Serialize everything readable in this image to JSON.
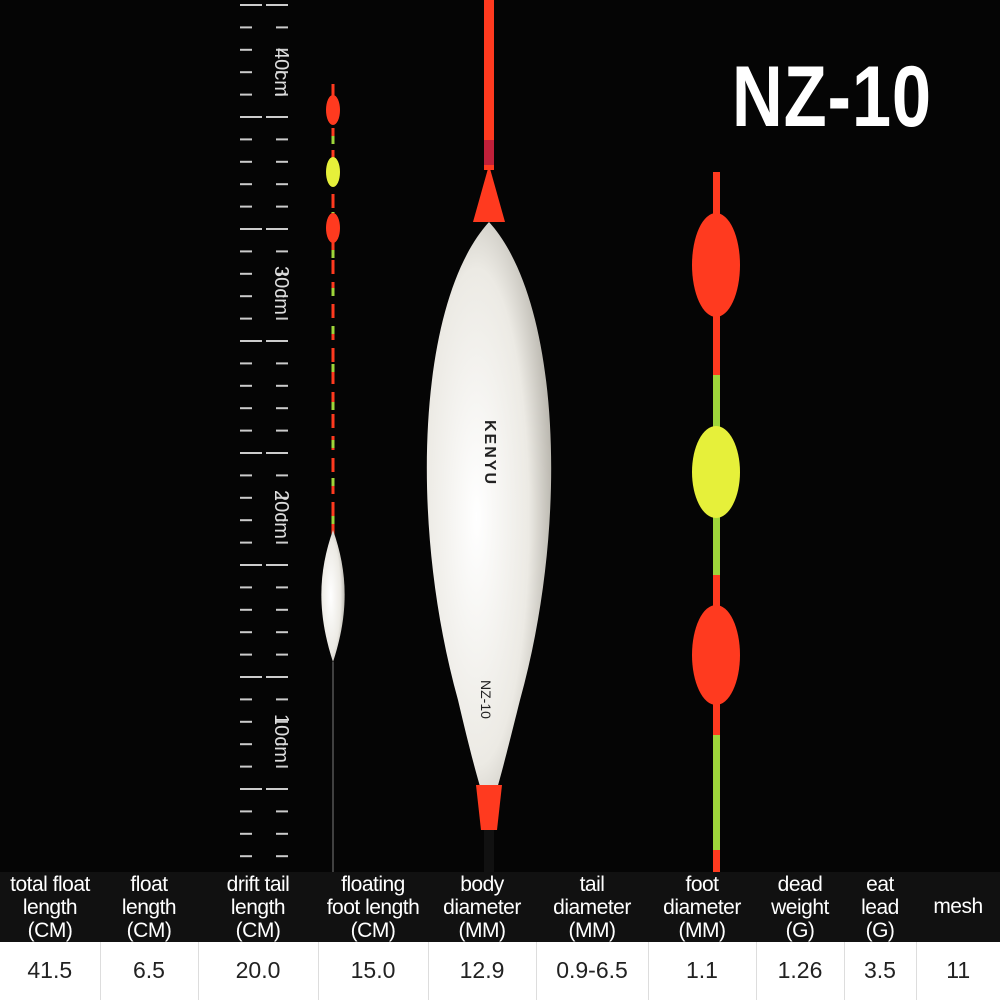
{
  "model": "NZ-10",
  "ruler": {
    "labels": [
      "40cm",
      "30cm",
      "20cm",
      "10cm"
    ]
  },
  "float_print": {
    "brand": "KENYU",
    "model": "NZ-10"
  },
  "colors": {
    "tip_red": "#ff3a1f",
    "tip_yellow": "#e6f03a",
    "body_white": "#f1f0ec",
    "tail_green": "#9ed63a"
  },
  "specs": {
    "headers": [
      [
        "total float",
        "length",
        "(CM)"
      ],
      [
        "float",
        "length",
        "(CM)"
      ],
      [
        "drift tail",
        "length",
        "(CM)"
      ],
      [
        "floating",
        "foot length",
        "(CM)"
      ],
      [
        "body",
        "diameter",
        "(MM)"
      ],
      [
        "tail",
        "diameter",
        "(MM)"
      ],
      [
        "foot",
        "diameter",
        "(MM)"
      ],
      [
        "dead",
        "weight",
        "(G)"
      ],
      [
        "eat",
        "lead",
        "(G)"
      ],
      [
        "mesh"
      ]
    ],
    "values": [
      "41.5",
      "6.5",
      "20.0",
      "15.0",
      "12.9",
      "0.9-6.5",
      "1.1",
      "1.26",
      "3.5",
      "11"
    ]
  }
}
